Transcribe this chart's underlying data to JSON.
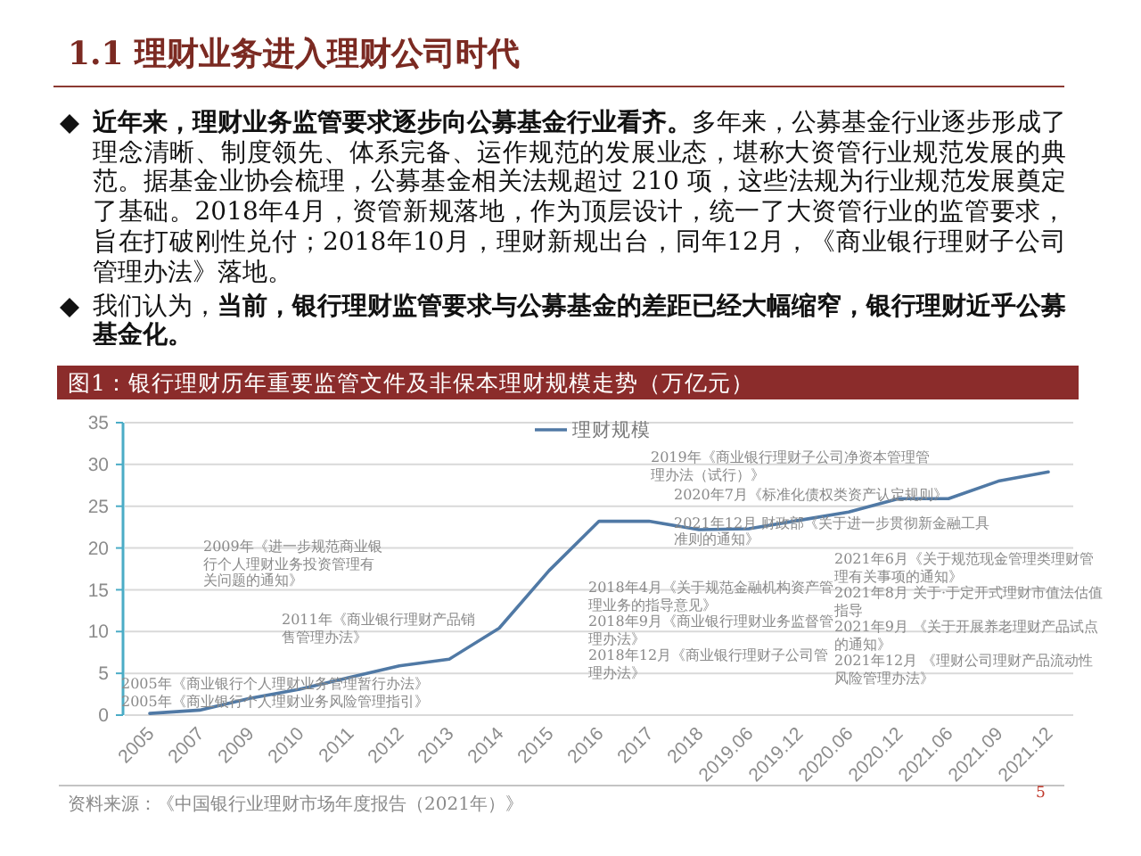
{
  "chart_data": {
    "type": "line",
    "title": "图1：银行理财历年重要监管文件及非保本理财规模走势（万亿元）",
    "categories": [
      "2005",
      "2007",
      "2009",
      "2010",
      "2011",
      "2012",
      "2013",
      "2014",
      "2015",
      "2016",
      "2017",
      "2018",
      "2019.06",
      "2019.12",
      "2020.06",
      "2020.12",
      "2021.06",
      "2021.09",
      "2021.12"
    ],
    "series": [
      {
        "name": "理财规模",
        "color": "#5079a5",
        "values": [
          0.2,
          0.6,
          2.0,
          3.1,
          4.5,
          5.9,
          6.7,
          10.4,
          17.3,
          23.2,
          23.2,
          22.2,
          22.3,
          23.3,
          24.3,
          25.9,
          25.9,
          28.0,
          29.1
        ]
      }
    ],
    "ylim": [
      0,
      35
    ],
    "yticks": [
      0,
      5,
      10,
      15,
      20,
      25,
      30,
      35
    ],
    "grid": "y",
    "legend": "top",
    "annotations": [
      "1.1 理财业务进入理财公司时代",
      "**近年来，理财业务监管要求逐步向公募基金行业看齐。**多年来，公募基金行业逐步形成了理念清晰、制度领先、体系完备、运作规范的发展业态，堪称大资管行业规范发展的典范。据基金业协会梳理，公募基金相关法规超过 210 项，这些法规为行业规范发展奠定了基础。2018年4月，资管新规落地，作为顶层设计，统一了大资管行业的监管要求，旨在打破刚性兑付；2018年10月，理财新规出台，同年12月，《商业银行理财子公司管理办法》落地。",
      "我们认为，**当前，银行理财监管要求与公募基金的差距已经大幅缩窄，银行理财近乎公募基金化。**",
      "2005年《商业银行个人理财业务管理暂行办法》",
      "2005年《商业银行个人理财业务风险管理指引》",
      "2009年《进一步规范商业银行个人理财业务投资管理有关问题的通知》",
      "2011年《商业银行理财产品销售管理办法》",
      "2018年4月《关于规范金融机构资产管理业务的指导意见》",
      "2018年9月《商业银行理财业务监督管理办法》",
      "2018年12月《商业银行理财子公司管理办法》",
      "2019年《商业银行理财子公司净资本管理管理办法（试行）》",
      "2020年7月《标准化债权类资产认定规则》",
      "2021年12月 财政部《关于进一步贯彻新金融工具准则的通知》",
      "2021年6月《关于规范现金管理类理财管理有关事项的通知》",
      "2021年8月 关于·于定开式理财市值法估值指导",
      "2021年9月 《关于开展养老理财产品试点的通知》",
      "2021年12月 《理财公司理财产品流动性风险管理办法》",
      "资料来源：《中国银行业理财市场年度报告（2021年）》",
      "5"
    ]
  }
}
